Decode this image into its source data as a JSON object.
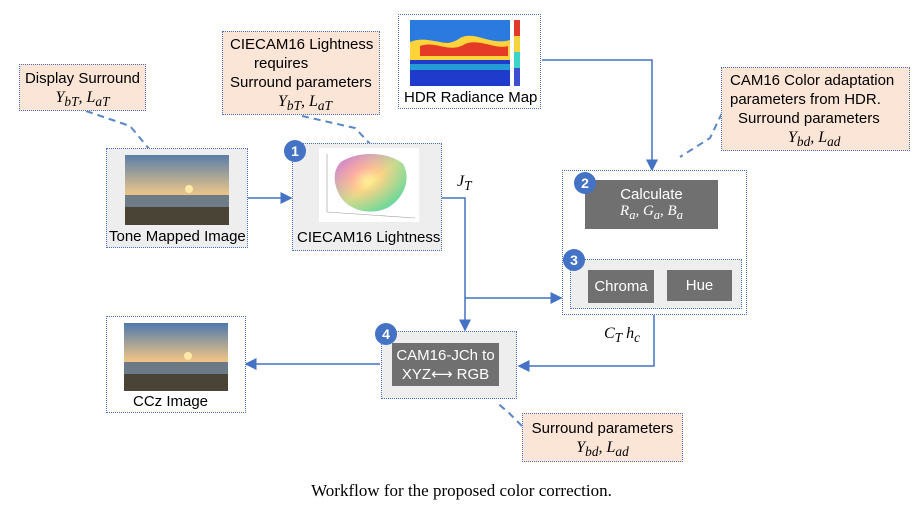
{
  "notes": {
    "display_surround": {
      "line1": "Display Surround",
      "math": "Y_bT, L_aT"
    },
    "ciecam_lightness_req": {
      "line1": "CIECAM16 Lightness",
      "line2": "requires",
      "line3": "Surround parameters",
      "math": "Y_bT, L_aT"
    },
    "cam16_adaptation": {
      "line1": "CAM16 Color adaptation",
      "line2": "parameters from HDR.",
      "line3": "Surround parameters",
      "math": "Y_bd, L_ad"
    },
    "surround_bottom": {
      "line1": "Surround parameters",
      "math": "Y_bd, L_ad"
    }
  },
  "nodes": {
    "tone_mapped": {
      "label": "Tone Mapped Image"
    },
    "ciecam_lightness": {
      "label": "CIECAM16 Lightness",
      "step": "1"
    },
    "hdr_map": {
      "label": "HDR Radiance Map"
    },
    "calculate": {
      "step": "2",
      "line1": "Calculate",
      "math": "R_a, G_a, B_a"
    },
    "chroma_hue": {
      "step": "3",
      "chroma": "Chroma",
      "hue": "Hue"
    },
    "cam16_jch": {
      "step": "4",
      "line1": "CAM16-JCh to",
      "line2": "XYZ⟷ RGB"
    },
    "ccz": {
      "label": "CCz Image"
    }
  },
  "signals": {
    "jt": "J_T",
    "ct_hc": "C_T h_c"
  },
  "caption": "Workflow for the proposed color correction."
}
